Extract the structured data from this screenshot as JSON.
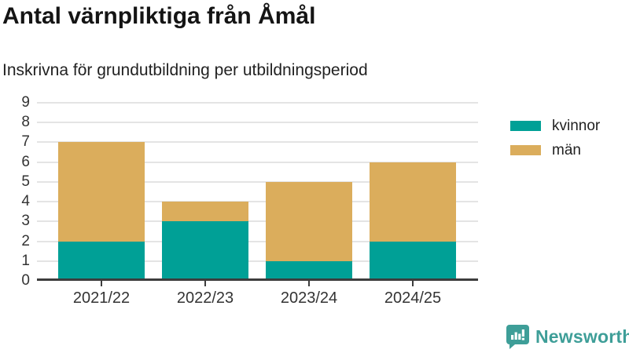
{
  "chart_data": {
    "type": "bar",
    "stacked": true,
    "title": "Antal värnpliktiga från Åmål",
    "subtitle": "Inskrivna för grundutbildning per utbildningsperiod",
    "categories": [
      "2021/22",
      "2022/23",
      "2023/24",
      "2024/25"
    ],
    "series": [
      {
        "name": "kvinnor",
        "color": "#00A096",
        "values": [
          2,
          3,
          1,
          2
        ]
      },
      {
        "name": "män",
        "color": "#DBAD5C",
        "values": [
          5,
          1,
          4,
          4
        ]
      }
    ],
    "totals": [
      7,
      4,
      5,
      6
    ],
    "xlabel": "",
    "ylabel": "",
    "ylim": [
      0,
      9
    ],
    "ytick_step": 1,
    "grid": true,
    "legend_position": "outside-upper-right"
  },
  "footer": {
    "brand": "Newsworthy"
  },
  "colors": {
    "kvinnor": "#00A096",
    "man": "#DBAD5C",
    "brand_teal": "#3E9E98",
    "gridline": "#E4E4E4",
    "axis": "#3D3D3D",
    "text_dark": "#141414",
    "text_body": "#333333"
  }
}
